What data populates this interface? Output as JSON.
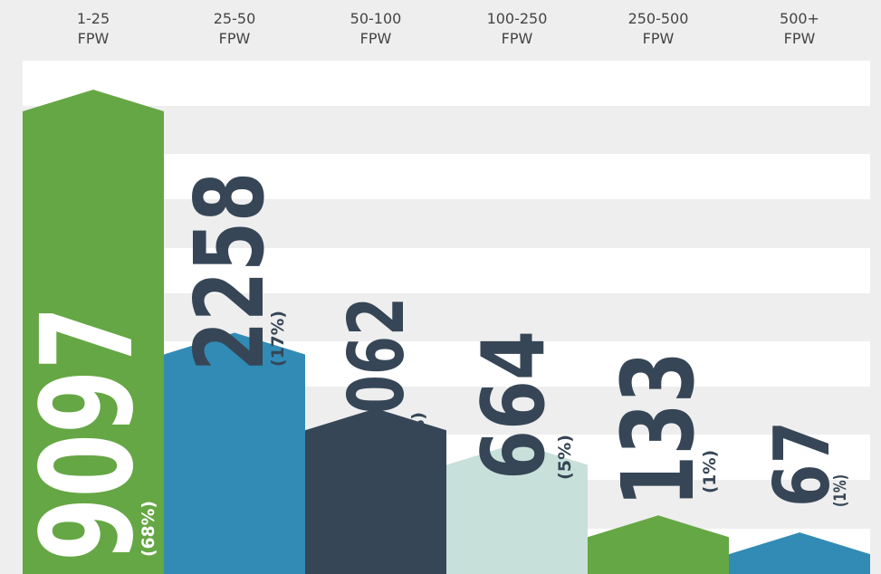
{
  "chart_data": {
    "type": "bar",
    "categories": [
      [
        "1-25",
        "FPW"
      ],
      [
        "25-50",
        "FPW"
      ],
      [
        "50-100",
        "FPW"
      ],
      [
        "100-250",
        "FPW"
      ],
      [
        "250-500",
        "FPW"
      ],
      [
        "500+",
        "FPW"
      ]
    ],
    "values": [
      9097,
      2258,
      1062,
      664,
      133,
      67
    ],
    "share_labels": [
      "(68%)",
      "(17%)",
      "(8%)",
      "(5%)",
      "(1%)",
      "(1%)"
    ],
    "colors": [
      "#65a744",
      "#318bb5",
      "#364656",
      "#c8e0da",
      "#65a744",
      "#318bb5"
    ]
  }
}
